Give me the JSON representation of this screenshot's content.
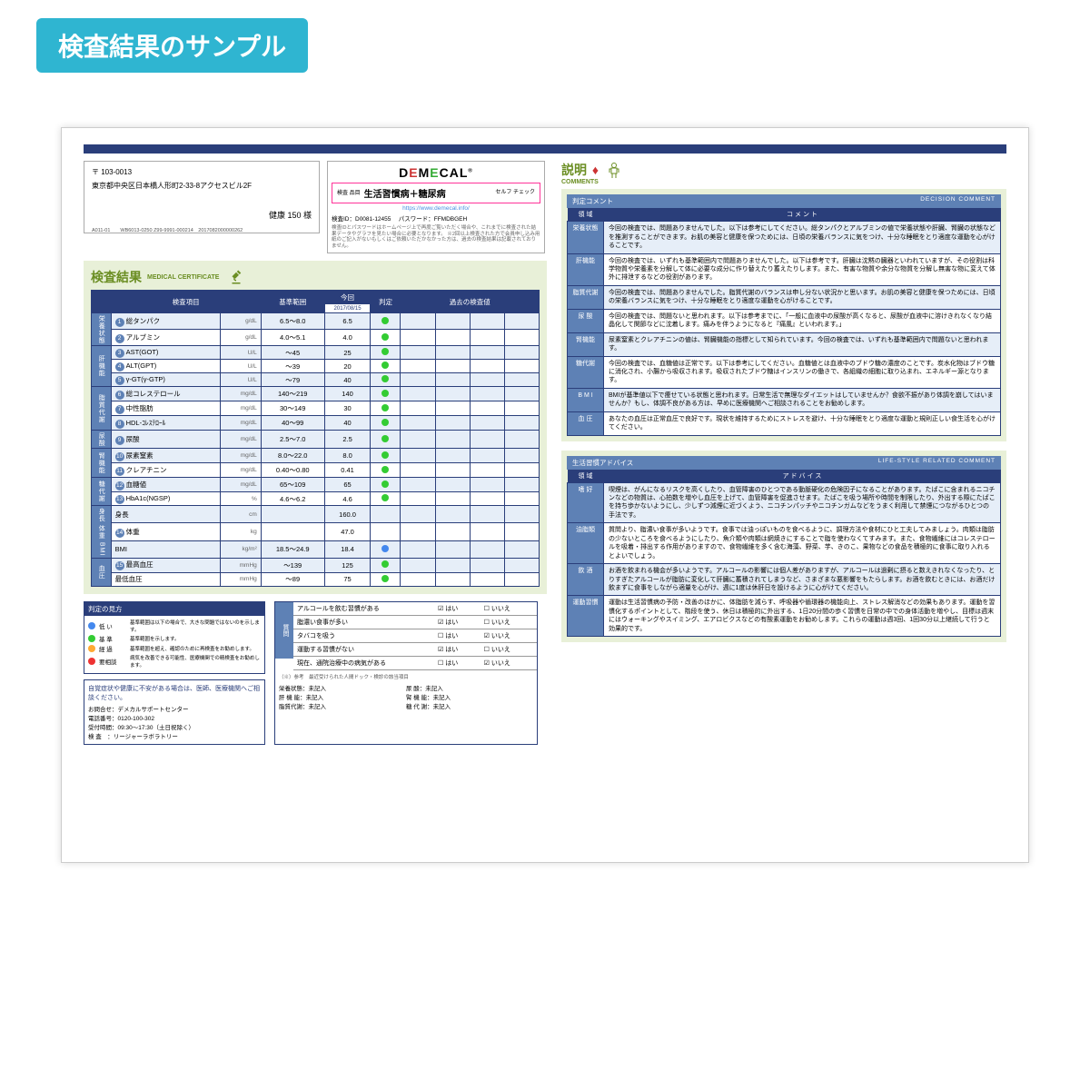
{
  "page_header": "検査結果のサンプル",
  "logo": {
    "text": "DEMECAL"
  },
  "address": {
    "postal": "〒 103-0013",
    "line": "東京都中央区日本橋人形町2-33-8アクセスビル2F",
    "name": "健康 150 様",
    "codes": "A011-01　　WB6013-0250  Z99-9991-000214　2017082000000262"
  },
  "test_box": {
    "label": "検査\n品目",
    "title": "生活習慣病＋糖尿病",
    "self": "セルフ\nチェック",
    "url": "https://www.demecal.info/",
    "id_label": "検査ID：",
    "id": "D0081-12455",
    "pw_label": "パスワード：",
    "pw": "FFMDBGEH",
    "note": "検査IDとパスワードはホームページ上で再度ご覧いただく場合や、これまでに検査された結果データやグラフを見たい場合に必要となります。\n※2回以上検査された方で会員申し込み用紙のご記入がないもしくはご依頼いただかなかった方は、過去の検査結果は記載されておりません。"
  },
  "results_title": "検査結果",
  "results_sub": "MEDICAL CERTIFICATE",
  "table_headers": {
    "item": "検査項目",
    "range": "基準範囲",
    "now": "今回",
    "judge": "判定",
    "past": "過去の検査値",
    "date": "2017/08/15"
  },
  "categories": [
    {
      "name": "栄養状態",
      "rows": [
        {
          "n": "1",
          "item": "総タンパク",
          "unit": "g/dL",
          "range": "6.5～8.0",
          "val": "6.5",
          "dot": "green"
        },
        {
          "n": "2",
          "item": "アルブミン",
          "unit": "g/dL",
          "range": "4.0～5.1",
          "val": "4.0",
          "dot": "green"
        }
      ]
    },
    {
      "name": "肝機能",
      "rows": [
        {
          "n": "3",
          "item": "AST(GOT)",
          "unit": "U/L",
          "range": "～45",
          "val": "25",
          "dot": "green"
        },
        {
          "n": "4",
          "item": "ALT(GPT)",
          "unit": "U/L",
          "range": "～39",
          "val": "20",
          "dot": "green"
        },
        {
          "n": "5",
          "item": "γ-GT(γ-GTP)",
          "unit": "U/L",
          "range": "～79",
          "val": "40",
          "dot": "green"
        }
      ]
    },
    {
      "name": "脂質代謝",
      "rows": [
        {
          "n": "6",
          "item": "総コレステロール",
          "unit": "mg/dL",
          "range": "140～219",
          "val": "140",
          "dot": "green"
        },
        {
          "n": "7",
          "item": "中性脂肪",
          "unit": "mg/dL",
          "range": "30～149",
          "val": "30",
          "dot": "green"
        },
        {
          "n": "8",
          "item": "HDL-ｺﾚｽﾃﾛｰﾙ",
          "unit": "mg/dL",
          "range": "40～99",
          "val": "40",
          "dot": "green"
        }
      ]
    },
    {
      "name": "尿酸",
      "rows": [
        {
          "n": "9",
          "item": "尿酸",
          "unit": "mg/dL",
          "range": "2.5～7.0",
          "val": "2.5",
          "dot": "green"
        }
      ]
    },
    {
      "name": "腎機能",
      "rows": [
        {
          "n": "10",
          "item": "尿素窒素",
          "unit": "mg/dL",
          "range": "8.0～22.0",
          "val": "8.0",
          "dot": "green"
        },
        {
          "n": "11",
          "item": "クレアチニン",
          "unit": "mg/dL",
          "range": "0.40～0.80",
          "val": "0.41",
          "dot": "green"
        }
      ]
    },
    {
      "name": "糖代謝",
      "rows": [
        {
          "n": "12",
          "item": "血糖値",
          "unit": "mg/dL",
          "range": "65～109",
          "val": "65",
          "dot": "green"
        },
        {
          "n": "13",
          "item": "HbA1c(NGSP)",
          "unit": "%",
          "range": "4.6～6.2",
          "val": "4.6",
          "dot": "green"
        }
      ]
    },
    {
      "name": "身長\n体重\nBMI",
      "rows": [
        {
          "n": "",
          "item": "身長",
          "unit": "cm",
          "range": "",
          "val": "160.0",
          "dot": ""
        },
        {
          "n": "14",
          "item": "体重",
          "unit": "kg",
          "range": "",
          "val": "47.0",
          "dot": ""
        },
        {
          "n": "",
          "item": "BMI",
          "unit": "kg/m²",
          "range": "18.5～24.9",
          "val": "18.4",
          "dot": "blue"
        }
      ]
    },
    {
      "name": "血圧",
      "rows": [
        {
          "n": "15",
          "item": "最高血圧",
          "unit": "mmHg",
          "range": "～139",
          "val": "125",
          "dot": "green"
        },
        {
          "n": "",
          "item": "最低血圧",
          "unit": "mmHg",
          "range": "～89",
          "val": "75",
          "dot": "green"
        }
      ]
    }
  ],
  "legend_title": "判定の見方",
  "legend": [
    {
      "color": "bl",
      "label": "低 い",
      "text": "基準範囲は以下の場合で、大きな問題ではないのを示します。"
    },
    {
      "color": "gr",
      "label": "基 準",
      "text": "基準範囲を示します。"
    },
    {
      "color": "or",
      "label": "経 過",
      "text": "基準範囲を超え、確認のために再検査をお勧めします。"
    },
    {
      "color": "rd",
      "label": "要相談",
      "text": "病気を改善できる可能性、医療機関での精検査をお勧めします。"
    }
  ],
  "q_title": "質問",
  "questions": [
    {
      "q": "アルコールを飲む習慣がある",
      "yes": true
    },
    {
      "q": "脂濃い食事が多い",
      "yes": true
    },
    {
      "q": "タバコを吸う",
      "yes": false
    },
    {
      "q": "運動する習慣がない",
      "yes": true
    },
    {
      "q": "現在、通院治療中の病気がある",
      "yes": false
    }
  ],
  "q_note": "（※）参考　最近受けられた人間ドック・検診の該当項目",
  "q_grid": [
    [
      "栄養状態：未記入",
      "尿 酸：未記入"
    ],
    [
      "肝 機 能：未記入",
      "腎 機 能：未記入"
    ],
    [
      "脂質代謝：未記入",
      "糖 代 謝：未記入"
    ]
  ],
  "contact": {
    "hd": "自覚症状や健康に不安がある場合は、医師、医療機関へご相談ください。",
    "lines": [
      "お問合せ：デメカルサポートセンター",
      "電話番号：0120-100-302",
      "受付時間：09:30～17:30（土日祝除く）",
      "検 査　：リージャーラボラトリー"
    ]
  },
  "comments_title": "説明",
  "comments_sub": "COMMENTS",
  "decision_hdr": {
    "l": "判定コメント",
    "r": "DECISION COMMENT"
  },
  "col_area": "領 域",
  "col_comment": "コ メ ン ト",
  "decisions": [
    {
      "area": "栄養状態",
      "text": "今回の検査では、問題ありませんでした。以下は参考にしてください。総タンパクとアルブミンの値で栄養状態や肝臓、腎臓の状態などを推測することができます。お肌の美容と健康を保つためには、日頃の栄養バランスに気をつけ、十分な睡眠をとり適度な運動を心がけることです。"
    },
    {
      "area": "肝機能",
      "text": "今回の検査では、いずれも基準範囲内で問題ありませんでした。以下は参考です。肝臓は沈黙の臓器といわれていますが、その役割は科学物質や栄養素を分解して体に必要な成分に作り替えたり蓄えたりします。また、有害な物質や余分な物質を分解し無害な物に変えて体外に排泄するなどの役割があります。"
    },
    {
      "area": "脂質代謝",
      "text": "今回の検査では、問題ありませんでした。脂質代謝のバランスは申し分ない状況かと思います。お肌の美容と健康を保つためには、日頃の栄養バランスに気をつけ、十分な睡眠をとり適度な運動を心がけることです。"
    },
    {
      "area": "尿 酸",
      "text": "今回の検査では、問題ないと思われます。以下は参考までに、「一般に血液中の尿酸が高くなると、尿酸が血液中に溶けきれなくなり結晶化して関節などに沈着します。痛みを伴うようになると『痛風』といわれます。」"
    },
    {
      "area": "腎機能",
      "text": "尿素窒素とクレアチニンの値は、腎臓機能の指標として知られています。今回の検査では、いずれも基準範囲内で問題ないと思われます。"
    },
    {
      "area": "糖代謝",
      "text": "今回の検査では、血糖値は正常です。以下は参考にしてください。血糖値とは血液中のブドウ糖の濃度のことです。炭水化物はブドウ糖に消化され、小腸から吸収されます。吸収されたブドウ糖はインスリンの働きで、各組織の細胞に取り込まれ、エネルギー源となります。"
    },
    {
      "area": "B M I",
      "text": "BMIが基準値以下で痩せている状態と思われます。日常生活で無理なダイエットはしていませんか？食欲不振があり体調を崩してはいませんか？もし、体調不良がある方は、早めに医療機関へご相談されることをお勧めします。"
    },
    {
      "area": "血 圧",
      "text": "あなたの血圧は正常血圧で良好です。現状を維持するためにストレスを避け、十分な睡眠をとり適度な運動と規則正しい食生活を心がけてください。"
    }
  ],
  "advice_hdr": {
    "l": "生活習慣アドバイス",
    "r": "LIFE-STYLE RELATED COMMENT"
  },
  "col_advice": "ア ド バ イ ス",
  "advices": [
    {
      "area": "嗜 好",
      "text": "喫煙は、がんになるリスクを高くしたり、血管障害のひとつである動脈硬化の危険因子になることがあります。たばこに含まれるニコチンなどの物質は、心拍数を増やし血圧を上げて、血管障害を促進させます。たばこを吸う場所や時間を制限したり、外出する際にたばこを持ち歩かないようにし、少しずつ減煙に近づくよう、ニコチンパッチやニコチンガムなどをうまく利用して禁煙につながるひとつの手法です。"
    },
    {
      "area": "油脂類",
      "text": "質問より、脂濃い食事が多いようです。食事では油っぽいものを食べるように、調理方法や食材にひと工夫してみましょう。肉類は脂肪の少ないところを食べるようにしたり、魚介類や肉類は網焼きにすることで脂を使わなくてすみます。また、食物繊維にはコレステロールを吸着・排出する作用がありますので、食物繊維を多く含む海藻、野菜、芋、きのこ、果物などの食品を積極的に食事に取り入れるとよいでしょう。"
    },
    {
      "area": "飲 酒",
      "text": "お酒を飲まれる機会が多いようです。アルコールの影響には個人差がありますが、アルコールは過剰に摂ると数えきれなくなったり、とりすぎたアルコールが脂肪に変化して肝臓に蓄積されてしまうなど、さまざまな悪影響をもたらします。お酒を飲むときには、お酒だけ飲まずに食事をしながら適量を心がけ、週に1度は休肝日を設けるように心がけてください。"
    },
    {
      "area": "運動習慣",
      "text": "運動は生活習慣病の予防・改善のほかに、体脂肪を減らす、呼吸器や循環器の機能向上、ストレス解消などの効果もあります。運動を習慣化するポイントとして、階段を使う、休日は積極的に外出する、1日20分間の歩く習慣を日常の中での身体活動を増やし、目標は週末にはウォーキングやスイミング、エアロビクスなどの有酸素運動をお勧めします。これらの運動は週3回、1回30分以上継続して行うと効果的です。"
    }
  ],
  "colors": {
    "navy": "#2a3e7a",
    "blue": "#5e81b5",
    "pale": "#e6eef8",
    "olive": "#e8f0d8",
    "olivedk": "#6b8e23"
  }
}
